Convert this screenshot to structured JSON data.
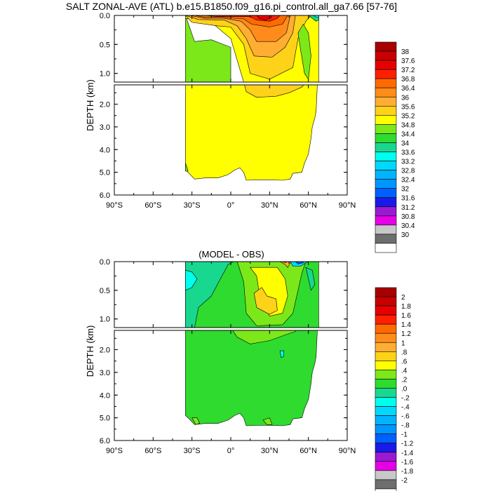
{
  "chart_data": [
    {
      "type": "heatmap",
      "title": "SALT ZONAL-AVE (ATL) b.e15.B1850.f09_g16.pi_control.all_ga7.66 [57-76]",
      "xlabel": "",
      "ylabel": "DEPTH (km)",
      "x_ticks": [
        "90°S",
        "60°S",
        "30°S",
        "0°",
        "30°N",
        "60°N",
        "90°N"
      ],
      "y_ticks_upper": [
        "0.0",
        "0.5",
        "1.0"
      ],
      "y_ticks_lower": [
        "2.0",
        "3.0",
        "4.0",
        "5.0",
        "6.0"
      ],
      "xlim": [
        -90,
        90
      ],
      "ylim_upper": [
        0,
        1.15
      ],
      "ylim_lower": [
        1.15,
        6.0
      ],
      "colorbar_labels": [
        "38",
        "37.6",
        "37.2",
        "36.8",
        "36.4",
        "36",
        "35.6",
        "35.2",
        "34.8",
        "34.4",
        "34",
        "33.6",
        "33.2",
        "32.8",
        "32.4",
        "32",
        "31.6",
        "31.2",
        "30.8",
        "30.4",
        "30"
      ],
      "colorbar_colors": [
        "#A80000",
        "#C80000",
        "#E80000",
        "#FF2000",
        "#FF6A00",
        "#FF8C1A",
        "#FFAE33",
        "#FFD21A",
        "#FFFF00",
        "#7CE81A",
        "#2EDB2E",
        "#18D890",
        "#00FFEE",
        "#00D8FF",
        "#00B4FF",
        "#0096FF",
        "#0060FF",
        "#1A1AE8",
        "#9A1AD2",
        "#E600E6",
        "#C8C8C8",
        "#6E6E6E",
        "#FFFFFF"
      ],
      "field_samples": [
        {
          "lat": -20,
          "depth": 0.1,
          "value": 36.3
        },
        {
          "lat": 25,
          "depth": 0.05,
          "value": 37.4
        },
        {
          "lat": 30,
          "depth": 0.5,
          "value": 36.1
        },
        {
          "lat": 55,
          "depth": 0.3,
          "value": 35.0
        },
        {
          "lat": 65,
          "depth": 0.02,
          "value": 33.4
        },
        {
          "lat": -30,
          "depth": 0.5,
          "value": 34.5
        },
        {
          "lat": 20,
          "depth": 1.8,
          "value": 35.2
        },
        {
          "lat": 0,
          "depth": 4.0,
          "value": 34.9
        }
      ]
    },
    {
      "type": "heatmap",
      "title": "(MODEL - OBS)",
      "xlabel": "",
      "ylabel": "DEPTH (km)",
      "x_ticks": [
        "90°S",
        "60°S",
        "30°S",
        "0°",
        "30°N",
        "60°N",
        "90°N"
      ],
      "y_ticks_upper": [
        "0.0",
        "0.5",
        "1.0"
      ],
      "y_ticks_lower": [
        "2.0",
        "3.0",
        "4.0",
        "5.0",
        "6.0"
      ],
      "xlim": [
        -90,
        90
      ],
      "ylim_upper": [
        0,
        1.15
      ],
      "ylim_lower": [
        1.15,
        6.0
      ],
      "colorbar_labels": [
        "2",
        "1.8",
        "1.6",
        "1.4",
        "1.2",
        "1",
        ".8",
        ".6",
        ".4",
        ".2",
        ".0",
        "-.2",
        "-.4",
        "-.6",
        "-.8",
        "-1",
        "-1.2",
        "-1.4",
        "-1.6",
        "-1.8",
        "-2"
      ],
      "colorbar_colors": [
        "#A80000",
        "#C80000",
        "#E80000",
        "#FF2000",
        "#FF6A00",
        "#FF8C1A",
        "#FFAE33",
        "#FFD21A",
        "#FFFF00",
        "#7CE81A",
        "#2EDB2E",
        "#18D890",
        "#00FFEE",
        "#00D8FF",
        "#00B4FF",
        "#0096FF",
        "#0060FF",
        "#1A1AE8",
        "#9A1AD2",
        "#E600E6",
        "#C8C8C8",
        "#6E6E6E",
        "#FFFFFF"
      ],
      "field_samples": [
        {
          "lat": -30,
          "depth": 0.3,
          "value": -0.5
        },
        {
          "lat": 25,
          "depth": 0.75,
          "value": 0.8
        },
        {
          "lat": 15,
          "depth": 0.3,
          "value": 0.5
        },
        {
          "lat": 50,
          "depth": 0.05,
          "value": -1.5
        },
        {
          "lat": 40,
          "depth": 0.05,
          "value": 1.5
        },
        {
          "lat": 20,
          "depth": 1.5,
          "value": 0.3
        },
        {
          "lat": 0,
          "depth": 4.0,
          "value": 0.1
        }
      ]
    }
  ]
}
